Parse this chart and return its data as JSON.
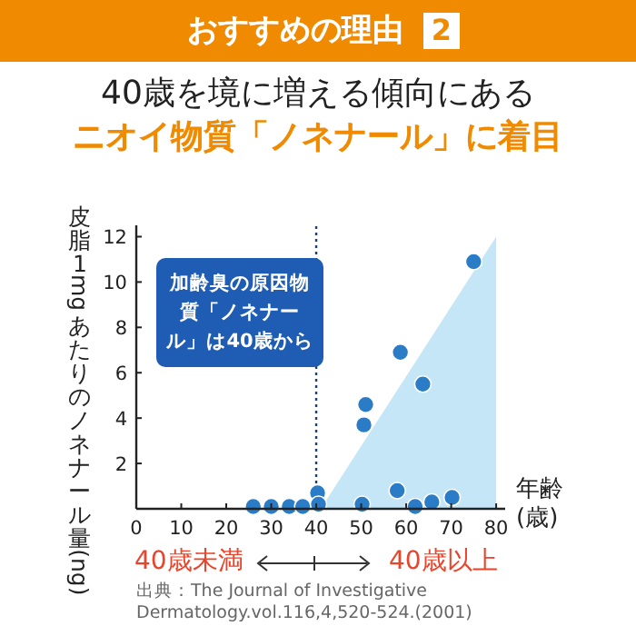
{
  "chart_data": {
    "type": "scatter",
    "title": "40歳を境に増える傾向にある",
    "subtitle": "ニオイ物質「ノネナール」に着目",
    "xlabel": "年齢(歳)",
    "ylabel": "皮脂1mgあたりのノネナール量(ng)",
    "annotations": [
      "おすすめの理由",
      "2",
      "加齢臭の原因物質「ノネナール」は40歳から",
      "40歳未満",
      "40歳以上",
      "出典：The Journal of Investigative Dermatology.vol.116,4,520-524.(2001)"
    ],
    "xlim": [
      0,
      82
    ],
    "ylim": [
      0,
      12.5
    ],
    "xticks": [
      0,
      10,
      20,
      30,
      40,
      50,
      60,
      70,
      80
    ],
    "yticks": [
      2,
      4,
      6,
      8,
      10,
      12
    ],
    "series": [
      {
        "type": "area",
        "color": "#c4e6f7",
        "x": [
          41,
          80
        ],
        "values": [
          0,
          12
        ]
      },
      {
        "color": "#2a7cc7",
        "marker": "circle",
        "x": [
          26,
          30,
          34,
          37,
          40.3,
          40.5,
          50.2,
          50.6,
          51,
          58,
          58.7,
          62,
          63.7,
          65.7,
          70.2,
          75
        ],
        "values": [
          0.1,
          0.1,
          0.1,
          0.1,
          0.7,
          0.2,
          0.2,
          3.7,
          4.6,
          0.8,
          6.9,
          0.1,
          5.5,
          0.3,
          0.5,
          10.9
        ]
      }
    ],
    "ref_lines": [
      {
        "axis": "x",
        "value": 40,
        "line_style": "dotted",
        "color": "#1a3f7a"
      }
    ],
    "grid": false
  }
}
